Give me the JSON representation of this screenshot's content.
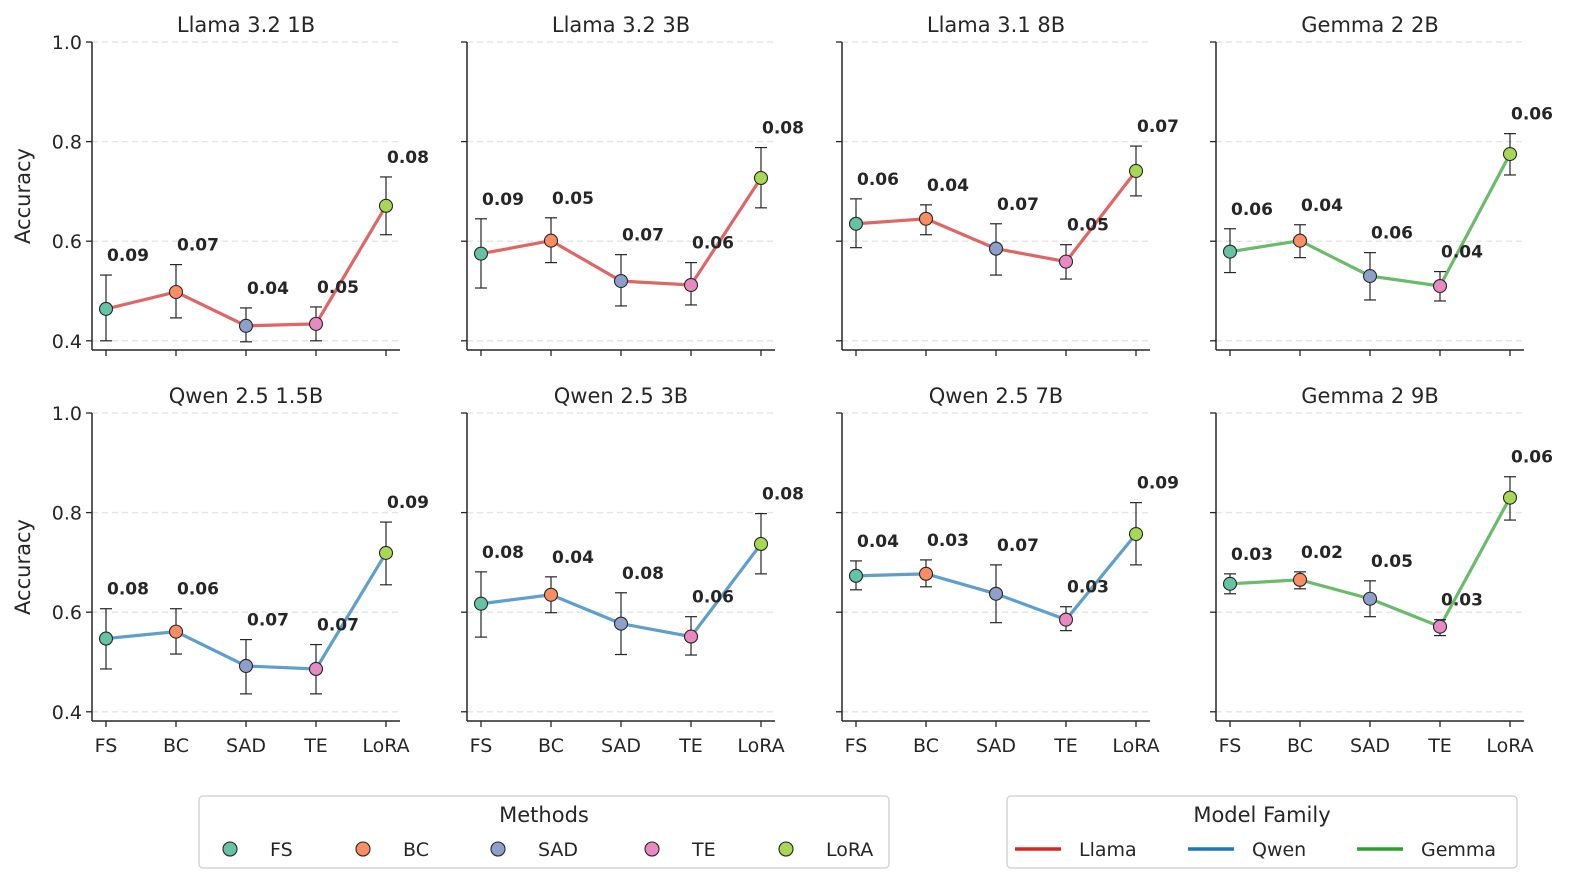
{
  "chart_data": {
    "type": "line",
    "categories": [
      "FS",
      "BC",
      "SAD",
      "TE",
      "LoRA"
    ],
    "ylabel": "Accuracy",
    "ylim": [
      0.38,
      1.0
    ],
    "yticks": [
      "0.4",
      "0.6",
      "0.8",
      "1.0"
    ],
    "grid": "horizontal dashed",
    "method_colors": {
      "FS": "#66c2a5",
      "BC": "#fc8d62",
      "SAD": "#8da0cb",
      "TE": "#e78ac3",
      "LoRA": "#a6d854"
    },
    "family_colors": {
      "Llama": "#e06666",
      "Qwen": "#5f9fcd",
      "Gemma": "#6abb6a"
    },
    "family_legend_colors": {
      "Llama": "#d62728",
      "Qwen": "#1f77b4",
      "Gemma": "#2ca02c"
    },
    "panels": [
      {
        "title": "Llama 3.2 1B",
        "family": "Llama",
        "values": [
          0.464,
          0.498,
          0.43,
          0.434,
          0.671
        ],
        "ci": [
          [
            0.4,
            0.532
          ],
          [
            0.446,
            0.553
          ],
          [
            0.398,
            0.466
          ],
          [
            0.4,
            0.468
          ],
          [
            0.613,
            0.729
          ]
        ],
        "err_labels": [
          "0.09",
          "0.07",
          "0.04",
          "0.05",
          "0.08"
        ]
      },
      {
        "title": "Llama 3.2 3B",
        "family": "Llama",
        "values": [
          0.575,
          0.601,
          0.52,
          0.512,
          0.727
        ],
        "ci": [
          [
            0.506,
            0.645
          ],
          [
            0.557,
            0.647
          ],
          [
            0.47,
            0.573
          ],
          [
            0.472,
            0.557
          ],
          [
            0.667,
            0.788
          ]
        ],
        "err_labels": [
          "0.09",
          "0.05",
          "0.07",
          "0.06",
          "0.08"
        ]
      },
      {
        "title": "Llama 3.1 8B",
        "family": "Llama",
        "values": [
          0.635,
          0.645,
          0.585,
          0.559,
          0.741
        ],
        "ci": [
          [
            0.587,
            0.685
          ],
          [
            0.613,
            0.673
          ],
          [
            0.532,
            0.635
          ],
          [
            0.524,
            0.593
          ],
          [
            0.691,
            0.791
          ]
        ],
        "err_labels": [
          "0.06",
          "0.04",
          "0.07",
          "0.05",
          "0.07"
        ]
      },
      {
        "title": "Gemma 2 2B",
        "family": "Gemma",
        "values": [
          0.579,
          0.601,
          0.53,
          0.51,
          0.775
        ],
        "ci": [
          [
            0.537,
            0.625
          ],
          [
            0.567,
            0.633
          ],
          [
            0.482,
            0.577
          ],
          [
            0.48,
            0.539
          ],
          [
            0.733,
            0.816
          ]
        ],
        "err_labels": [
          "0.06",
          "0.04",
          "0.06",
          "0.04",
          "0.06"
        ]
      },
      {
        "title": "Qwen 2.5 1.5B",
        "family": "Qwen",
        "values": [
          0.547,
          0.561,
          0.492,
          0.486,
          0.719
        ],
        "ci": [
          [
            0.486,
            0.607
          ],
          [
            0.516,
            0.607
          ],
          [
            0.436,
            0.545
          ],
          [
            0.436,
            0.535
          ],
          [
            0.655,
            0.781
          ]
        ],
        "err_labels": [
          "0.08",
          "0.06",
          "0.07",
          "0.07",
          "0.09"
        ]
      },
      {
        "title": "Qwen 2.5 3B",
        "family": "Qwen",
        "values": [
          0.617,
          0.635,
          0.577,
          0.551,
          0.737
        ],
        "ci": [
          [
            0.55,
            0.681
          ],
          [
            0.599,
            0.671
          ],
          [
            0.515,
            0.639
          ],
          [
            0.514,
            0.591
          ],
          [
            0.677,
            0.798
          ]
        ],
        "err_labels": [
          "0.08",
          "0.04",
          "0.08",
          "0.06",
          "0.08"
        ]
      },
      {
        "title": "Qwen 2.5 7B",
        "family": "Qwen",
        "values": [
          0.673,
          0.677,
          0.637,
          0.585,
          0.757
        ],
        "ci": [
          [
            0.645,
            0.703
          ],
          [
            0.651,
            0.705
          ],
          [
            0.579,
            0.695
          ],
          [
            0.563,
            0.611
          ],
          [
            0.695,
            0.82
          ]
        ],
        "err_labels": [
          "0.04",
          "0.03",
          "0.07",
          "0.03",
          "0.09"
        ]
      },
      {
        "title": "Gemma 2 9B",
        "family": "Gemma",
        "values": [
          0.657,
          0.665,
          0.627,
          0.571,
          0.83
        ],
        "ci": [
          [
            0.637,
            0.677
          ],
          [
            0.647,
            0.681
          ],
          [
            0.591,
            0.663
          ],
          [
            0.553,
            0.585
          ],
          [
            0.785,
            0.872
          ]
        ],
        "err_labels": [
          "0.03",
          "0.02",
          "0.05",
          "0.03",
          "0.06"
        ]
      }
    ],
    "legends": {
      "methods": {
        "title": "Methods",
        "items": [
          "FS",
          "BC",
          "SAD",
          "TE",
          "LoRA"
        ]
      },
      "family": {
        "title": "Model Family",
        "items": [
          "Llama",
          "Qwen",
          "Gemma"
        ]
      }
    }
  }
}
